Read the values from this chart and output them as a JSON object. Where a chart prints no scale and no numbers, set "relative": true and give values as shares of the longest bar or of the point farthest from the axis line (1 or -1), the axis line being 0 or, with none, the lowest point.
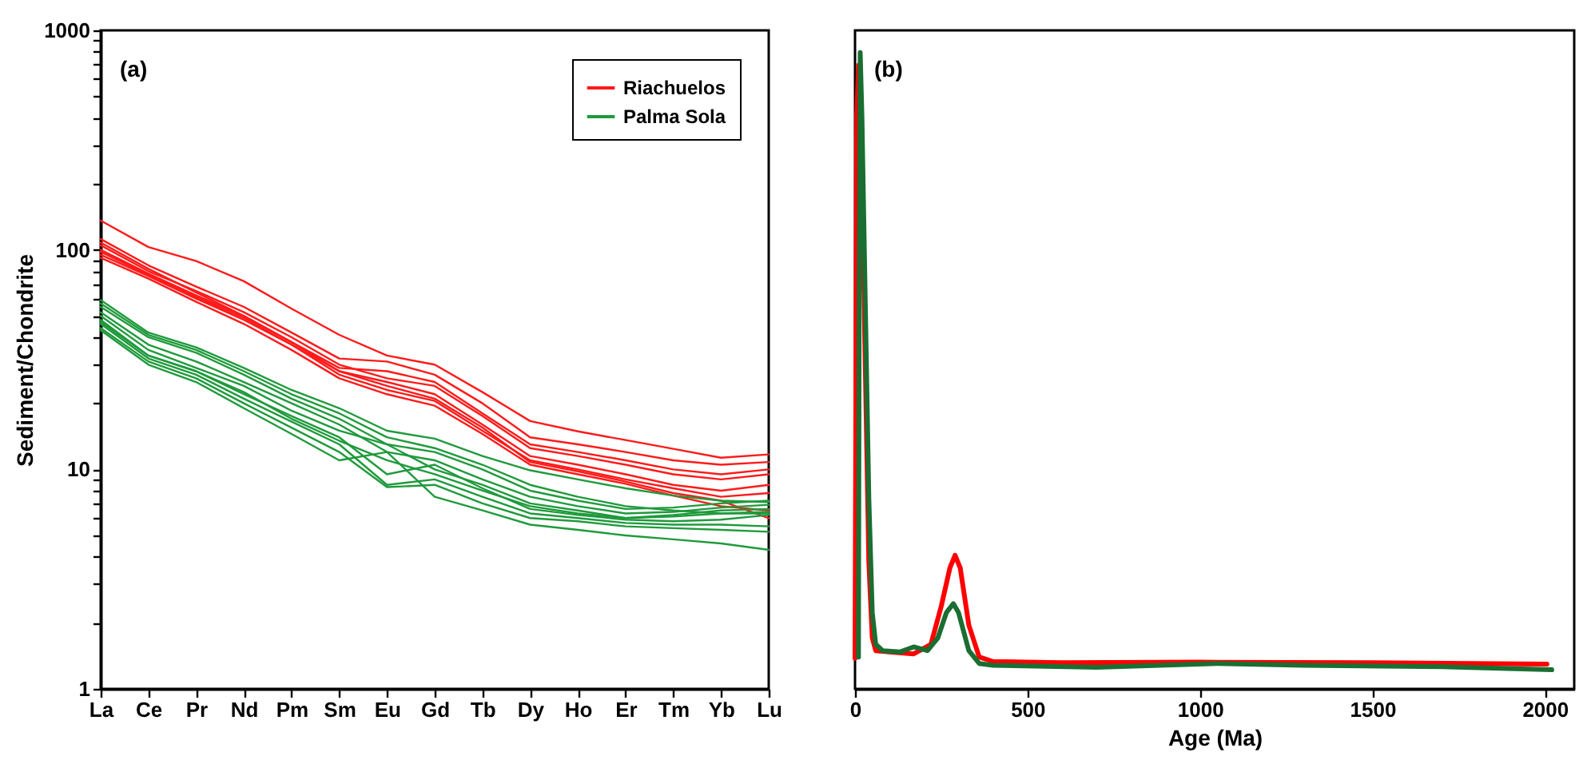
{
  "chart_data": [
    {
      "type": "line",
      "ylabel": "Sediment/Chondrite",
      "annotations": [
        "(a)"
      ],
      "log": true,
      "legend": "top right",
      "categories": [
        "La",
        "Ce",
        "Pr",
        "Nd",
        "Pm",
        "Sm",
        "Eu",
        "Gd",
        "Tb",
        "Dy",
        "Ho",
        "Er",
        "Tm",
        "Yb",
        "Lu"
      ],
      "ylim": [
        1,
        1000
      ],
      "yticks": [
        1,
        {
          "value": 2,
          "label": null
        },
        {
          "value": 3,
          "label": null
        },
        {
          "value": 4,
          "label": null
        },
        {
          "value": 5,
          "label": null
        },
        {
          "value": 6,
          "label": null
        },
        {
          "value": 7,
          "label": null
        },
        {
          "value": 8,
          "label": null
        },
        {
          "value": 9,
          "label": null
        },
        10,
        {
          "value": 20,
          "label": null
        },
        {
          "value": 30,
          "label": null
        },
        {
          "value": 40,
          "label": null
        },
        {
          "value": 50,
          "label": null
        },
        {
          "value": 60,
          "label": null
        },
        {
          "value": 70,
          "label": null
        },
        {
          "value": 80,
          "label": null
        },
        {
          "value": 90,
          "label": null
        },
        100,
        {
          "value": 200,
          "label": null
        },
        {
          "value": 300,
          "label": null
        },
        {
          "value": 400,
          "label": null
        },
        {
          "value": 500,
          "label": null
        },
        {
          "value": 600,
          "label": null
        },
        {
          "value": 700,
          "label": null
        },
        {
          "value": 800,
          "label": null
        },
        {
          "value": 900,
          "label": null
        },
        1000
      ],
      "series": [
        {
          "name": "Riachuelos",
          "color": "#ff1a1a",
          "values": [
            136,
            103,
            89,
            72,
            54,
            41,
            33,
            30,
            22.5,
            16.6,
            14.9,
            13.6,
            12.4,
            11.3,
            11.7
          ]
        },
        {
          "color": "#ff1a1a",
          "values": [
            112,
            85,
            68,
            55,
            42,
            32,
            31,
            27,
            20,
            14,
            13,
            12,
            11,
            10.5,
            10.8
          ]
        },
        {
          "color": "#ff1a1a",
          "values": [
            105,
            80,
            65,
            52,
            40,
            30,
            26,
            24,
            17.5,
            12.5,
            11.5,
            10.5,
            9.5,
            9,
            9.5
          ]
        },
        {
          "color": "#ff1a1a",
          "values": [
            100,
            78,
            62,
            50,
            38,
            28,
            25,
            22,
            16,
            11.5,
            10.5,
            9.5,
            8.5,
            8,
            8.5
          ]
        },
        {
          "color": "#ff1a1a",
          "values": [
            95,
            76,
            60,
            48,
            37,
            27,
            23,
            20.5,
            15,
            11,
            10,
            9,
            8.2,
            7.5,
            7.8
          ]
        },
        {
          "color": "#ff1a1a",
          "values": [
            92,
            74,
            58,
            46,
            35,
            26,
            22,
            19.5,
            14.5,
            10.5,
            9.5,
            8.6,
            7.6,
            6.8,
            6.5
          ]
        },
        {
          "color": "#ff1a1a",
          "values": [
            108,
            82,
            64,
            50,
            38,
            29,
            28,
            25,
            18,
            13,
            12,
            11,
            10,
            9.5,
            10
          ]
        },
        {
          "color": "#ff1a1a",
          "values": [
            98,
            77,
            61,
            49,
            37,
            28,
            24,
            21,
            15.5,
            10.8,
            9.8,
            8.8,
            7.8,
            7.2,
            6
          ]
        },
        {
          "name": "Palma Sola",
          "color": "#1f9a3c",
          "values": [
            59,
            42,
            36,
            29,
            23,
            19,
            15,
            13.8,
            11.5,
            9.9,
            9,
            8.2,
            7.6,
            7.2,
            7.1
          ]
        },
        {
          "color": "#1f9a3c",
          "values": [
            55,
            40,
            34,
            27,
            21,
            17,
            13,
            12,
            10,
            8,
            7.2,
            6.6,
            6.7,
            7,
            7.2
          ]
        },
        {
          "color": "#1f9a3c",
          "values": [
            52,
            37,
            31,
            25,
            20,
            16,
            12,
            11,
            9,
            7.5,
            6.8,
            6.3,
            6.4,
            6.7,
            6.9
          ]
        },
        {
          "color": "#1f9a3c",
          "values": [
            50,
            35,
            29,
            24,
            18.5,
            15,
            13,
            10,
            8.5,
            7,
            6.5,
            6,
            6.2,
            6.5,
            6.6
          ]
        },
        {
          "color": "#1f9a3c",
          "values": [
            48,
            33,
            28,
            22,
            17.5,
            14,
            9.5,
            10.5,
            8.2,
            6.6,
            6.2,
            5.9,
            5.8,
            5.9,
            6.2
          ]
        },
        {
          "color": "#1f9a3c",
          "values": [
            46,
            32,
            27,
            21,
            16.5,
            13,
            8.5,
            9,
            7.5,
            6.3,
            6,
            5.7,
            5.6,
            5.6,
            5.5
          ]
        },
        {
          "color": "#1f9a3c",
          "values": [
            44,
            31,
            26,
            20,
            15.5,
            12,
            8.3,
            8.5,
            7,
            6,
            5.8,
            5.5,
            5.4,
            5.3,
            5.2
          ]
        },
        {
          "color": "#1f9a3c",
          "values": [
            43,
            30,
            25,
            19,
            14.5,
            11,
            12,
            7.5,
            6.5,
            5.6,
            5.3,
            5,
            4.8,
            4.6,
            4.3
          ]
        },
        {
          "color": "#1f9a3c",
          "values": [
            57,
            41,
            35,
            28,
            22,
            18,
            14,
            12.5,
            10.5,
            8.5,
            7.5,
            6.8,
            6.5,
            6.3,
            6.3
          ]
        },
        {
          "color": "#1f9a3c",
          "values": [
            47,
            33,
            28,
            22.5,
            17,
            13.5,
            11,
            9.5,
            8,
            6.8,
            6.3,
            6,
            6.1,
            6.3,
            6.4
          ]
        }
      ]
    },
    {
      "type": "line",
      "xlabel": "Age (Ma)",
      "annotations": [
        "(b)"
      ],
      "relative": true,
      "xlim": [
        0,
        2085
      ],
      "xticks": [
        0,
        500,
        1000,
        1500,
        2000
      ],
      "series": [
        {
          "color": "#ff0000",
          "x": [
            0,
            5,
            10,
            20,
            30,
            40,
            50,
            60,
            80,
            120,
            170,
            220,
            250,
            275,
            290,
            305,
            330,
            360,
            400,
            600,
            1000,
            1500,
            2006
          ],
          "values": [
            0.048,
            0.9,
            0.98,
            0.8,
            0.5,
            0.2,
            0.08,
            0.06,
            0.059,
            0.057,
            0.055,
            0.07,
            0.13,
            0.19,
            0.21,
            0.19,
            0.1,
            0.05,
            0.043,
            0.041,
            0.042,
            0.041,
            0.039
          ]
        },
        {
          "color": "#1a6e32",
          "x": [
            10,
            12,
            15,
            20,
            30,
            40,
            50,
            60,
            80,
            130,
            170,
            210,
            240,
            265,
            285,
            300,
            330,
            360,
            400,
            700,
            1050,
            1300,
            1700,
            2020
          ],
          "values": [
            0.05,
            0.6,
            1,
            0.9,
            0.6,
            0.3,
            0.12,
            0.07,
            0.06,
            0.058,
            0.066,
            0.06,
            0.08,
            0.12,
            0.134,
            0.12,
            0.06,
            0.04,
            0.037,
            0.034,
            0.04,
            0.037,
            0.035,
            0.03
          ]
        }
      ]
    }
  ]
}
